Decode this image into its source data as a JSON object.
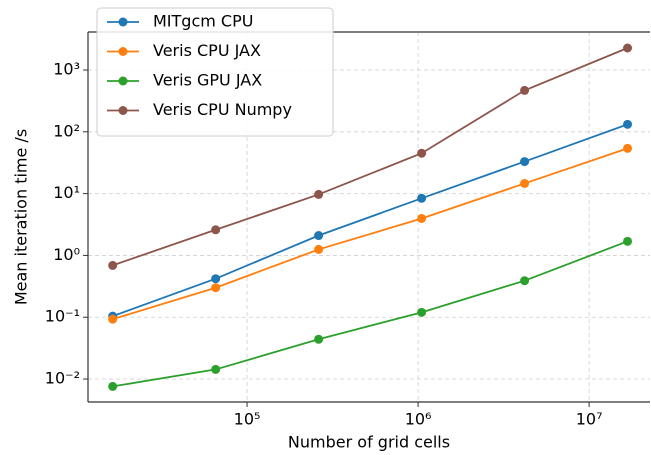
{
  "chart_data": {
    "type": "line",
    "xlabel": "Number of grid cells",
    "ylabel": "Mean iteration time /s",
    "x": [
      16384,
      65536,
      262144,
      1048576,
      4194304,
      16777216
    ],
    "xscale": "log",
    "yscale": "log",
    "xlim": [
      11750,
      22700000
    ],
    "ylim": [
      0.00425,
      4120
    ],
    "xticks": [
      {
        "value": 100000,
        "label": "10⁵"
      },
      {
        "value": 1000000,
        "label": "10⁶"
      },
      {
        "value": 10000000,
        "label": "10⁷"
      }
    ],
    "yticks": [
      {
        "value": 0.01,
        "label": "10⁻²"
      },
      {
        "value": 0.1,
        "label": "10⁻¹"
      },
      {
        "value": 1,
        "label": "10⁰"
      },
      {
        "value": 10,
        "label": "10¹"
      },
      {
        "value": 100,
        "label": "10²"
      },
      {
        "value": 1000,
        "label": "10³"
      }
    ],
    "grid": true,
    "legend": "upper left",
    "series": [
      {
        "name": "MITgcm CPU",
        "color": "#1f77b4",
        "values": [
          0.104,
          0.42,
          2.1,
          8.4,
          33,
          132
        ]
      },
      {
        "name": "Veris CPU JAX",
        "color": "#ff7f0e",
        "values": [
          0.093,
          0.3,
          1.25,
          3.96,
          14.6,
          54
        ]
      },
      {
        "name": "Veris GPU JAX",
        "color": "#2ca02c",
        "values": [
          0.0076,
          0.0143,
          0.044,
          0.12,
          0.39,
          1.69
        ]
      },
      {
        "name": "Veris CPU Numpy",
        "color": "#8c564b",
        "values": [
          0.69,
          2.6,
          9.7,
          45,
          468,
          2270
        ]
      }
    ]
  }
}
